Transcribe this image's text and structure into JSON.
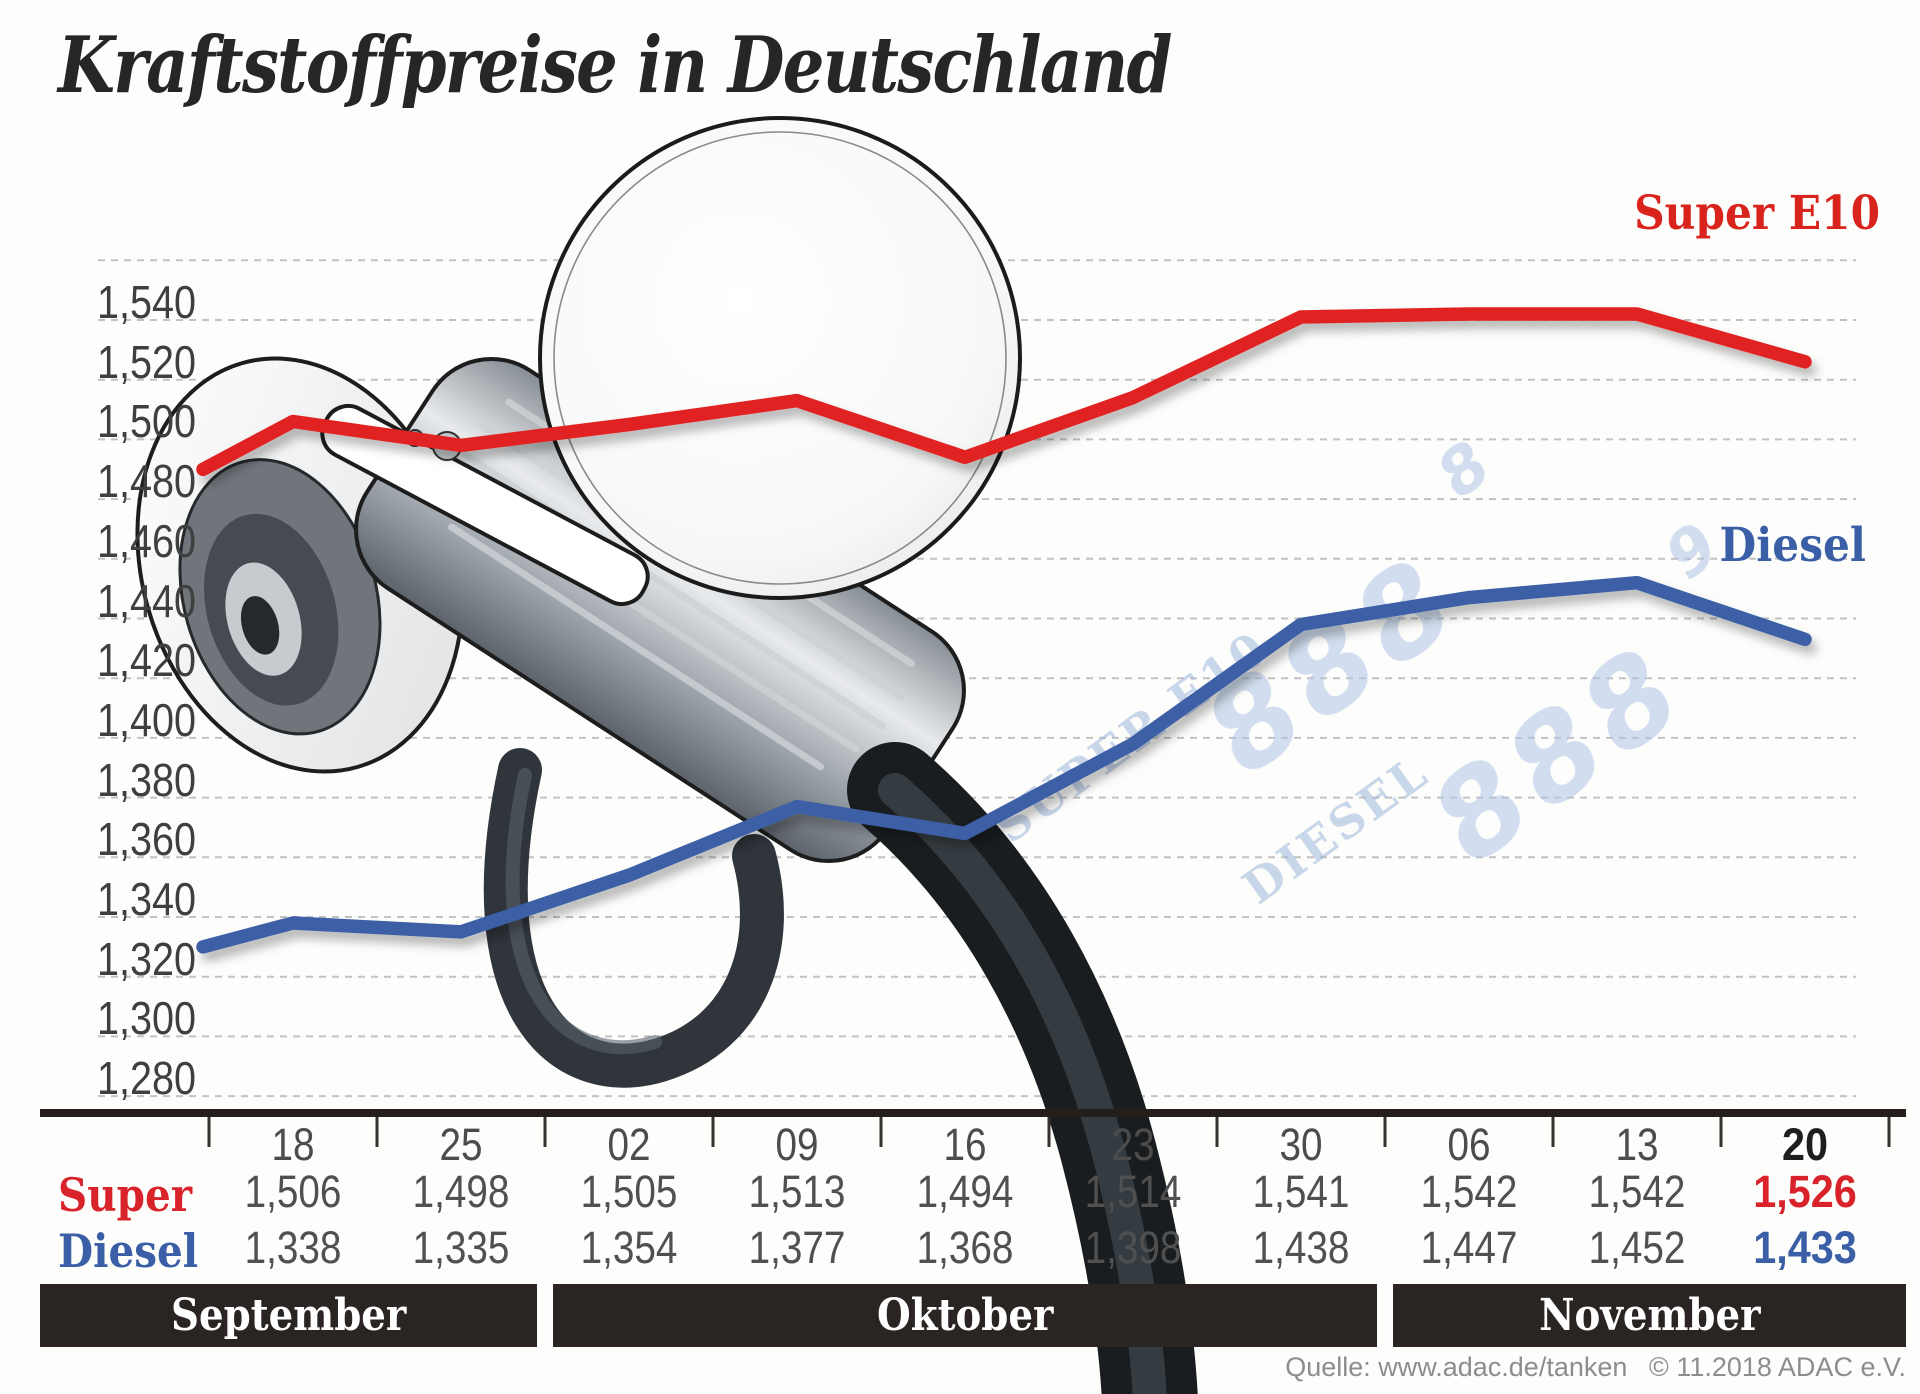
{
  "title": "Kraftstoffpreise in Deutschland",
  "legend": {
    "super_label": "Super E10",
    "diesel_label": "Diesel"
  },
  "colors": {
    "super_line": "#e02420",
    "diesel_line": "#3d5fa6",
    "super_text": "#d9232b",
    "diesel_text": "#3a5fa6",
    "month_band": "#2a2422",
    "grid_line": "#c2c2c2",
    "axis_line": "#241f1b",
    "pump_display_blue": "#a9c0e0"
  },
  "chart_data": {
    "type": "line",
    "title": "Kraftstoffpreise in Deutschland",
    "categories": [
      "18",
      "25",
      "02",
      "09",
      "16",
      "23",
      "30",
      "06",
      "13",
      "20"
    ],
    "months": [
      {
        "label": "September",
        "span": 2
      },
      {
        "label": "Oktober",
        "span": 5
      },
      {
        "label": "November",
        "span": 3
      }
    ],
    "series": [
      {
        "name": "Super E10",
        "color": "#e02420",
        "values": [
          1.506,
          1.498,
          1.505,
          1.513,
          1.494,
          1.514,
          1.541,
          1.542,
          1.542,
          1.526
        ],
        "lead_in": 1.49
      },
      {
        "name": "Diesel",
        "color": "#3d5fa6",
        "values": [
          1.338,
          1.335,
          1.354,
          1.377,
          1.368,
          1.398,
          1.438,
          1.447,
          1.452,
          1.433
        ],
        "lead_in": 1.33
      }
    ],
    "y_axis": {
      "tick_labels": [
        "1,540",
        "1,520",
        "1,500",
        "1,480",
        "1,460",
        "1,440",
        "1,420",
        "1,400",
        "1,380",
        "1,360",
        "1,340",
        "1,320",
        "1,300",
        "1,280"
      ],
      "max": 1.54,
      "min": 1.28,
      "step": 0.02,
      "grid": "dashed"
    },
    "legend_position": "right-inline"
  },
  "table": {
    "row_labels": {
      "super": "Super",
      "diesel": "Diesel"
    }
  },
  "pump_display": {
    "super_text": "SUPER E10",
    "super_digits": "888",
    "super_small_digit": "8",
    "diesel_text": "DIESEL",
    "diesel_digits": "888",
    "diesel_small_digit": "9"
  },
  "source": {
    "text": "Quelle: www.adac.de/tanken",
    "copyright": "© 11.2018  ADAC e.V."
  }
}
